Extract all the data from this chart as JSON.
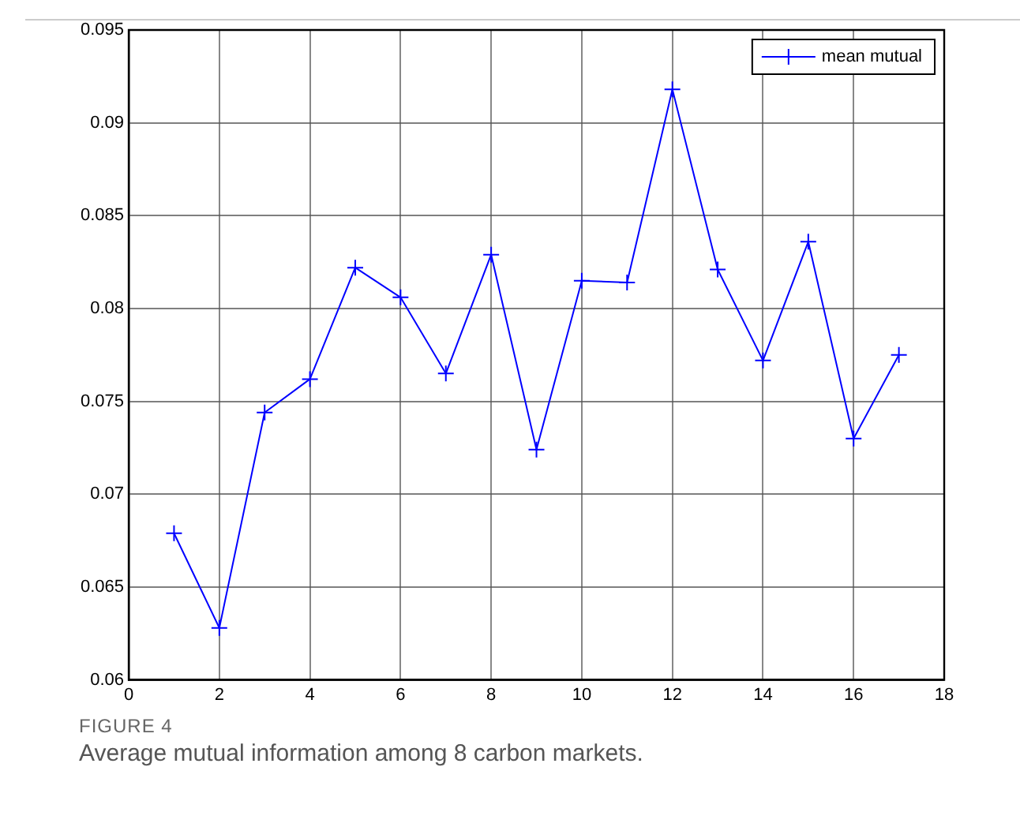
{
  "chart_data": {
    "type": "line",
    "x": [
      1,
      2,
      3,
      4,
      5,
      6,
      7,
      8,
      9,
      10,
      11,
      12,
      13,
      14,
      15,
      16,
      17
    ],
    "series": [
      {
        "name": "mean mutual",
        "color": "#0000ff",
        "values": [
          0.0679,
          0.0628,
          0.0744,
          0.0762,
          0.0822,
          0.0806,
          0.0765,
          0.0829,
          0.0724,
          0.0815,
          0.0814,
          0.0918,
          0.0821,
          0.0772,
          0.0836,
          0.073,
          0.0775
        ]
      }
    ],
    "xlim": [
      0,
      18
    ],
    "xticks": [
      0,
      2,
      4,
      6,
      8,
      10,
      12,
      14,
      16,
      18
    ],
    "ylim": [
      0.06,
      0.095
    ],
    "yticks": [
      0.06,
      0.065,
      0.07,
      0.075,
      0.08,
      0.085,
      0.09,
      0.095
    ],
    "grid": true,
    "legend": "top right",
    "marker": "cross",
    "line_style": "solid",
    "annotations": [
      "FIGURE 4",
      "Average mutual information among 8 carbon markets."
    ]
  }
}
